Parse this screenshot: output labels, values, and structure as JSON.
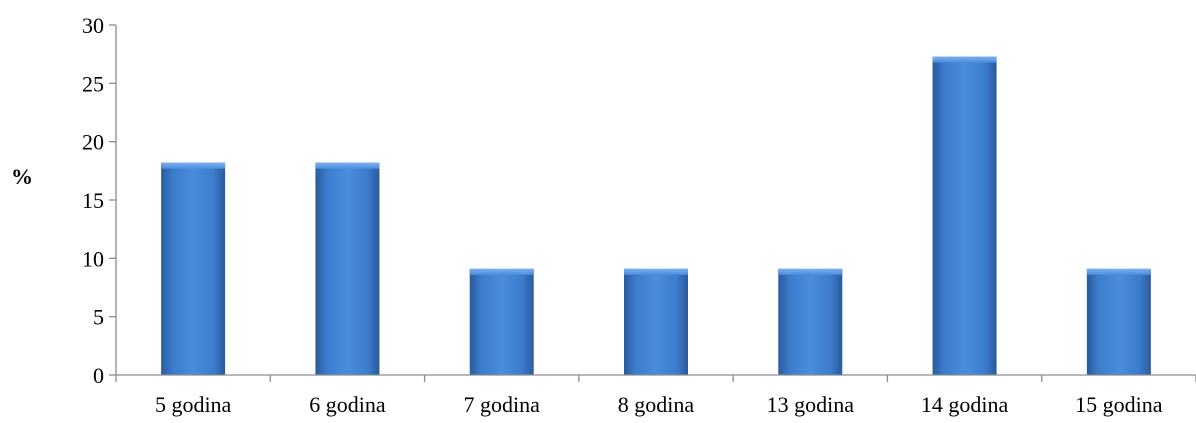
{
  "chart_data": {
    "type": "bar",
    "title": "",
    "xlabel": "",
    "ylabel": "%",
    "categories": [
      "5 godina",
      "6 godina",
      "7 godina",
      "8 godina",
      "13 godina",
      "14 godina",
      "15 godina"
    ],
    "values": [
      18.2,
      18.2,
      9.1,
      9.1,
      9.1,
      27.3,
      9.1
    ],
    "ylim": [
      0,
      30
    ],
    "yticks": [
      "0",
      "5",
      "10",
      "15",
      "20",
      "25",
      "30"
    ],
    "grid": false,
    "legend": "none",
    "bar_color": "#3a78c8"
  }
}
